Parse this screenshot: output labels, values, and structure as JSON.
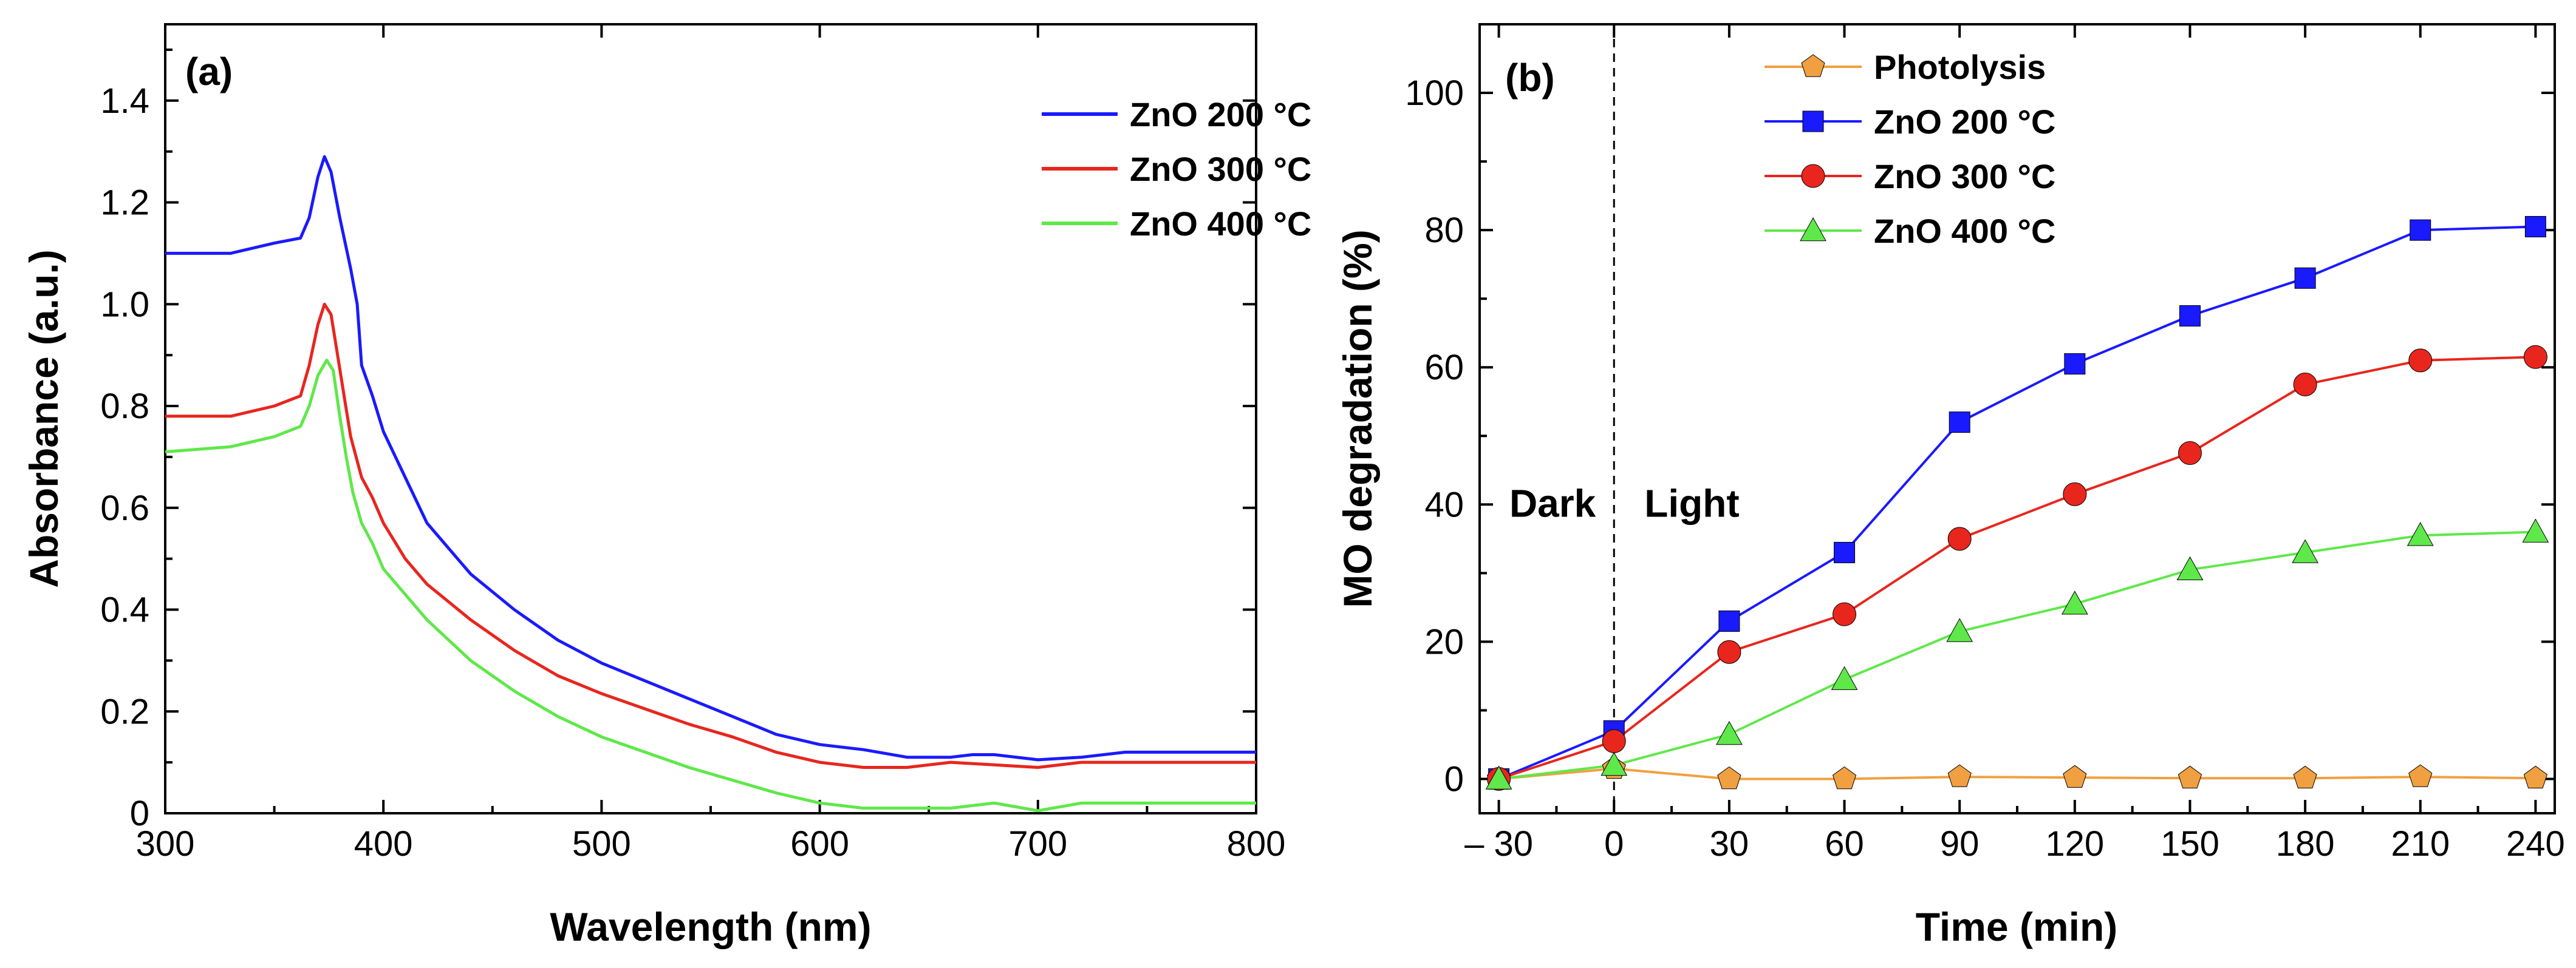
{
  "chart_data": [
    {
      "type": "line",
      "panel_label": "(a)",
      "xlabel": "Wavelength (nm)",
      "ylabel": "Absorbance (a.u.)",
      "xlim": [
        300,
        800
      ],
      "ylim": [
        0,
        1.55
      ],
      "xticks": [
        300,
        400,
        500,
        600,
        700,
        800
      ],
      "xtick_labels": [
        "300",
        "400",
        "500",
        "600",
        "700",
        "800"
      ],
      "yticks": [
        0,
        0.2,
        0.4,
        0.6,
        0.8,
        1.0,
        1.2,
        1.4
      ],
      "ytick_labels": [
        "0",
        "0.2",
        "0.4",
        "0.6",
        "0.8",
        "1.0",
        "1.2",
        "1.4"
      ],
      "legend_position": "top-right",
      "series": [
        {
          "name": "ZnO 200 °C",
          "color": "#1a1aff",
          "x": [
            300,
            330,
            350,
            362,
            366,
            370,
            373,
            376,
            380,
            385,
            388,
            390,
            395,
            400,
            410,
            420,
            440,
            460,
            480,
            500,
            520,
            540,
            560,
            580,
            600,
            620,
            640,
            660,
            670,
            680,
            700,
            720,
            740,
            760,
            780,
            800
          ],
          "y": [
            1.1,
            1.1,
            1.12,
            1.13,
            1.17,
            1.25,
            1.29,
            1.26,
            1.17,
            1.07,
            1.0,
            0.88,
            0.82,
            0.75,
            0.66,
            0.57,
            0.47,
            0.4,
            0.34,
            0.295,
            0.26,
            0.225,
            0.19,
            0.155,
            0.135,
            0.125,
            0.11,
            0.11,
            0.115,
            0.115,
            0.105,
            0.11,
            0.12,
            0.12,
            0.12,
            0.12
          ]
        },
        {
          "name": "ZnO 300 °C",
          "color": "#e8261e",
          "x": [
            300,
            330,
            350,
            362,
            366,
            370,
            373,
            376,
            379,
            382,
            385,
            390,
            395,
            400,
            410,
            420,
            440,
            460,
            480,
            500,
            520,
            540,
            560,
            580,
            600,
            620,
            640,
            660,
            680,
            700,
            720,
            740,
            760,
            780,
            800
          ],
          "y": [
            0.78,
            0.78,
            0.8,
            0.82,
            0.88,
            0.96,
            1.0,
            0.98,
            0.9,
            0.82,
            0.74,
            0.66,
            0.62,
            0.57,
            0.5,
            0.45,
            0.38,
            0.32,
            0.27,
            0.235,
            0.205,
            0.175,
            0.15,
            0.12,
            0.1,
            0.09,
            0.09,
            0.1,
            0.095,
            0.09,
            0.1,
            0.1,
            0.1,
            0.1,
            0.1
          ]
        },
        {
          "name": "ZnO 400 °C",
          "color": "#5fe84a",
          "x": [
            300,
            330,
            350,
            362,
            366,
            370,
            374,
            377,
            380,
            383,
            386,
            390,
            395,
            400,
            410,
            420,
            440,
            460,
            480,
            500,
            520,
            540,
            560,
            580,
            600,
            620,
            640,
            660,
            680,
            700,
            720,
            740,
            760,
            780,
            800
          ],
          "y": [
            0.71,
            0.72,
            0.74,
            0.76,
            0.8,
            0.86,
            0.89,
            0.87,
            0.78,
            0.7,
            0.63,
            0.57,
            0.53,
            0.48,
            0.43,
            0.38,
            0.3,
            0.24,
            0.19,
            0.15,
            0.12,
            0.09,
            0.065,
            0.04,
            0.02,
            0.01,
            0.01,
            0.01,
            0.02,
            0.005,
            0.02,
            0.02,
            0.02,
            0.02,
            0.02
          ]
        }
      ]
    },
    {
      "type": "line",
      "panel_label": "(b)",
      "xlabel": "Time (min)",
      "ylabel": "MO degradation (%)",
      "xlim": [
        -35,
        245
      ],
      "ylim": [
        -5,
        110
      ],
      "xticks": [
        -30,
        0,
        30,
        60,
        90,
        120,
        150,
        180,
        210,
        240
      ],
      "xtick_labels": [
        "– 30",
        "0",
        "30",
        "60",
        "90",
        "120",
        "150",
        "180",
        "210",
        "240"
      ],
      "yticks": [
        0,
        20,
        40,
        60,
        80,
        100
      ],
      "ytick_labels": [
        "0",
        "20",
        "40",
        "60",
        "80",
        "100"
      ],
      "divider_x": 0,
      "annotations": {
        "dark": "Dark",
        "light": "Light"
      },
      "legend_position": "top-left",
      "x": [
        -30,
        0,
        30,
        60,
        90,
        120,
        150,
        180,
        210,
        240
      ],
      "series": [
        {
          "name": "Photolysis",
          "color": "#f0a040",
          "marker": "pentagon",
          "values": [
            0,
            1.5,
            0,
            0,
            0.3,
            0.2,
            0.1,
            0.1,
            0.3,
            0.1
          ]
        },
        {
          "name": "ZnO 200 °C",
          "color": "#1a1aff",
          "marker": "square",
          "values": [
            0,
            7,
            23,
            33,
            52,
            60.5,
            67.5,
            73,
            80,
            80.5
          ]
        },
        {
          "name": "ZnO 300 °C",
          "color": "#e8261e",
          "marker": "circle",
          "values": [
            0,
            5.5,
            18.5,
            24,
            35,
            41.5,
            47.5,
            57.5,
            61,
            61.5
          ]
        },
        {
          "name": "ZnO 400 °C",
          "color": "#5fe84a",
          "marker": "triangle",
          "values": [
            0,
            2,
            6.5,
            14.5,
            21.5,
            25.5,
            30.5,
            33,
            35.5,
            36
          ]
        }
      ]
    }
  ]
}
